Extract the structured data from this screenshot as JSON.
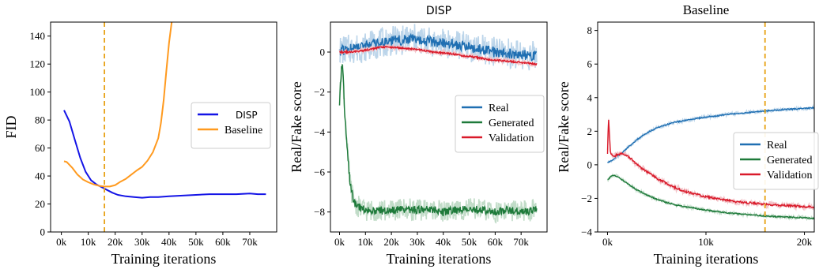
{
  "figure": {
    "background": "#ffffff"
  },
  "chart_data": [
    {
      "type": "line",
      "title": "",
      "xlabel": "Training iterations",
      "ylabel": "FID",
      "xlim": [
        -4000,
        80000
      ],
      "ylim": [
        0,
        150
      ],
      "xticks": [
        0,
        10000,
        20000,
        30000,
        40000,
        50000,
        60000,
        70000
      ],
      "xtick_labels": [
        "0k",
        "10k",
        "20k",
        "30k",
        "40k",
        "50k",
        "60k",
        "70k"
      ],
      "yticks": [
        0,
        20,
        40,
        60,
        80,
        100,
        120,
        140
      ],
      "ytick_labels": [
        "0",
        "20",
        "40",
        "60",
        "80",
        "100",
        "120",
        "140"
      ],
      "legend": {
        "placement": "center-right",
        "entries": [
          "DISP",
          "Baseline"
        ]
      },
      "vline": {
        "x": 16000,
        "color": "#e8a317",
        "style": "dashed"
      },
      "series": [
        {
          "name": "DISP",
          "color": "#1414e6",
          "font": "sans",
          "x": [
            1000,
            3000,
            5000,
            7000,
            9000,
            11000,
            13000,
            15000,
            17000,
            19000,
            21000,
            24000,
            27000,
            30000,
            33000,
            36000,
            40000,
            45000,
            50000,
            55000,
            60000,
            65000,
            70000,
            73000,
            76000
          ],
          "y": [
            87,
            79,
            66,
            53,
            43,
            37,
            34,
            32,
            30,
            28,
            26.5,
            25.5,
            25,
            24.5,
            25,
            25,
            25.5,
            26,
            26.5,
            27,
            27,
            27,
            27.5,
            27,
            27
          ]
        },
        {
          "name": "Baseline",
          "color": "#ff9a1f",
          "font": "serif",
          "x": [
            1000,
            2000,
            4000,
            6000,
            8000,
            10000,
            12000,
            14000,
            16000,
            18000,
            20000,
            22000,
            24000,
            26000,
            28000,
            30000,
            32000,
            34000,
            36000,
            37000,
            38000,
            39000,
            40000,
            41000
          ],
          "y": [
            50.5,
            50,
            46,
            41,
            37.5,
            35.5,
            34,
            33,
            32.5,
            32.5,
            33.5,
            36,
            38,
            41,
            44,
            46.5,
            51,
            57,
            67,
            78,
            94,
            115,
            135,
            150
          ]
        }
      ]
    },
    {
      "type": "line",
      "title": "DISP",
      "xlabel": "Training iterations",
      "ylabel": "Real/Fake score",
      "xlim": [
        -3500,
        80000
      ],
      "ylim": [
        -9,
        1.5
      ],
      "xticks": [
        0,
        10000,
        20000,
        30000,
        40000,
        50000,
        60000,
        70000
      ],
      "xtick_labels": [
        "0k",
        "10k",
        "20k",
        "30k",
        "40k",
        "50k",
        "60k",
        "70k"
      ],
      "yticks": [
        0,
        -2,
        -4,
        -6,
        -8
      ],
      "ytick_labels": [
        "0",
        "−2",
        "−4",
        "−6",
        "−8"
      ],
      "legend": {
        "placement": "center-right",
        "entries": [
          "Real",
          "Generated",
          "Validation"
        ]
      },
      "series": [
        {
          "name": "Real",
          "color": "#1f6fb2",
          "band": "#bcd5ea",
          "x": [
            0,
            4000,
            8000,
            12000,
            16000,
            20000,
            24000,
            28000,
            32000,
            36000,
            40000,
            44000,
            48000,
            52000,
            56000,
            60000,
            64000,
            68000,
            72000,
            76000
          ],
          "y": [
            0.1,
            0.15,
            0.2,
            0.35,
            0.45,
            0.55,
            0.6,
            0.7,
            0.6,
            0.5,
            0.45,
            0.4,
            0.3,
            0.2,
            0.1,
            0.0,
            -0.05,
            -0.1,
            -0.15,
            -0.2
          ]
        },
        {
          "name": "Generated",
          "color": "#1e7a3a",
          "band": "#c1dcc8",
          "x": [
            0,
            500,
            1000,
            1500,
            2000,
            3000,
            4000,
            5000,
            6000,
            7000,
            8000,
            10000,
            15000,
            20000,
            25000,
            30000,
            35000,
            40000,
            45000,
            50000,
            55000,
            60000,
            65000,
            70000,
            76000
          ],
          "y": [
            -2.5,
            -1.2,
            -0.6,
            -1.5,
            -3.0,
            -5.0,
            -6.5,
            -7.2,
            -7.6,
            -7.7,
            -7.8,
            -7.9,
            -7.95,
            -7.9,
            -7.85,
            -7.9,
            -7.85,
            -8.0,
            -7.9,
            -7.85,
            -7.9,
            -8.0,
            -7.9,
            -8.0,
            -7.9
          ]
        },
        {
          "name": "Validation",
          "color": "#d91a2a",
          "band": "#f3c3c8",
          "x": [
            0,
            4000,
            8000,
            12000,
            16000,
            20000,
            24000,
            28000,
            32000,
            36000,
            40000,
            44000,
            48000,
            52000,
            56000,
            60000,
            64000,
            68000,
            72000,
            76000
          ],
          "y": [
            0.0,
            0.0,
            0.05,
            0.15,
            0.25,
            0.25,
            0.2,
            0.15,
            0.1,
            0.0,
            -0.05,
            -0.1,
            -0.2,
            -0.25,
            -0.35,
            -0.4,
            -0.45,
            -0.5,
            -0.55,
            -0.6
          ]
        }
      ]
    },
    {
      "type": "line",
      "title": "Baseline",
      "xlabel": "Training iterations",
      "ylabel": "Real/Fake score",
      "xlim": [
        -1000,
        21000
      ],
      "ylim": [
        -4,
        8.5
      ],
      "xticks": [
        0,
        10000,
        20000
      ],
      "xtick_labels": [
        "0k",
        "10k",
        "20k"
      ],
      "yticks": [
        8,
        6,
        4,
        2,
        0,
        -2,
        -4
      ],
      "ytick_labels": [
        "8",
        "6",
        "4",
        "2",
        "0",
        "−2",
        "−4"
      ],
      "legend": {
        "placement": "center-right",
        "entries": [
          "Real",
          "Generated",
          "Validation"
        ]
      },
      "vline": {
        "x": 16000,
        "color": "#e8a317",
        "style": "dashed"
      },
      "series": [
        {
          "name": "Real",
          "color": "#1f6fb2",
          "band": "#bcd5ea",
          "x": [
            0,
            500,
            1000,
            1500,
            2000,
            3000,
            4000,
            5000,
            6000,
            7000,
            8000,
            9000,
            10000,
            11000,
            12000,
            13000,
            14000,
            15000,
            16000,
            17000,
            18000,
            19000,
            20000,
            21000
          ],
          "y": [
            0.1,
            0.3,
            0.5,
            0.7,
            1.0,
            1.5,
            1.9,
            2.2,
            2.4,
            2.55,
            2.65,
            2.75,
            2.85,
            2.9,
            3.0,
            3.05,
            3.1,
            3.15,
            3.2,
            3.25,
            3.3,
            3.32,
            3.35,
            3.4
          ]
        },
        {
          "name": "Generated",
          "color": "#1e7a3a",
          "band": "#c1dcc8",
          "x": [
            0,
            500,
            1000,
            1500,
            2000,
            3000,
            4000,
            5000,
            6000,
            7000,
            8000,
            9000,
            10000,
            11000,
            12000,
            13000,
            14000,
            15000,
            16000,
            17000,
            18000,
            19000,
            20000,
            21000
          ],
          "y": [
            -0.9,
            -0.6,
            -0.7,
            -0.9,
            -1.1,
            -1.5,
            -1.8,
            -2.05,
            -2.25,
            -2.4,
            -2.5,
            -2.6,
            -2.7,
            -2.78,
            -2.85,
            -2.9,
            -2.95,
            -3.0,
            -3.05,
            -3.08,
            -3.1,
            -3.13,
            -3.15,
            -3.2
          ]
        },
        {
          "name": "Validation",
          "color": "#d91a2a",
          "band": "#f3c3c8",
          "x": [
            0,
            100,
            300,
            600,
            1000,
            1500,
            2000,
            2500,
            3000,
            4000,
            5000,
            6000,
            7000,
            8000,
            9000,
            10000,
            11000,
            12000,
            13000,
            14000,
            15000,
            16000,
            17000,
            18000,
            19000,
            20000,
            21000
          ],
          "y": [
            0.7,
            2.9,
            0.7,
            0.5,
            0.6,
            0.7,
            0.55,
            0.3,
            0.0,
            -0.4,
            -0.8,
            -1.1,
            -1.4,
            -1.6,
            -1.75,
            -1.9,
            -2.0,
            -2.1,
            -2.2,
            -2.25,
            -2.3,
            -2.35,
            -2.4,
            -2.42,
            -2.45,
            -2.5,
            -2.5
          ]
        }
      ]
    }
  ]
}
